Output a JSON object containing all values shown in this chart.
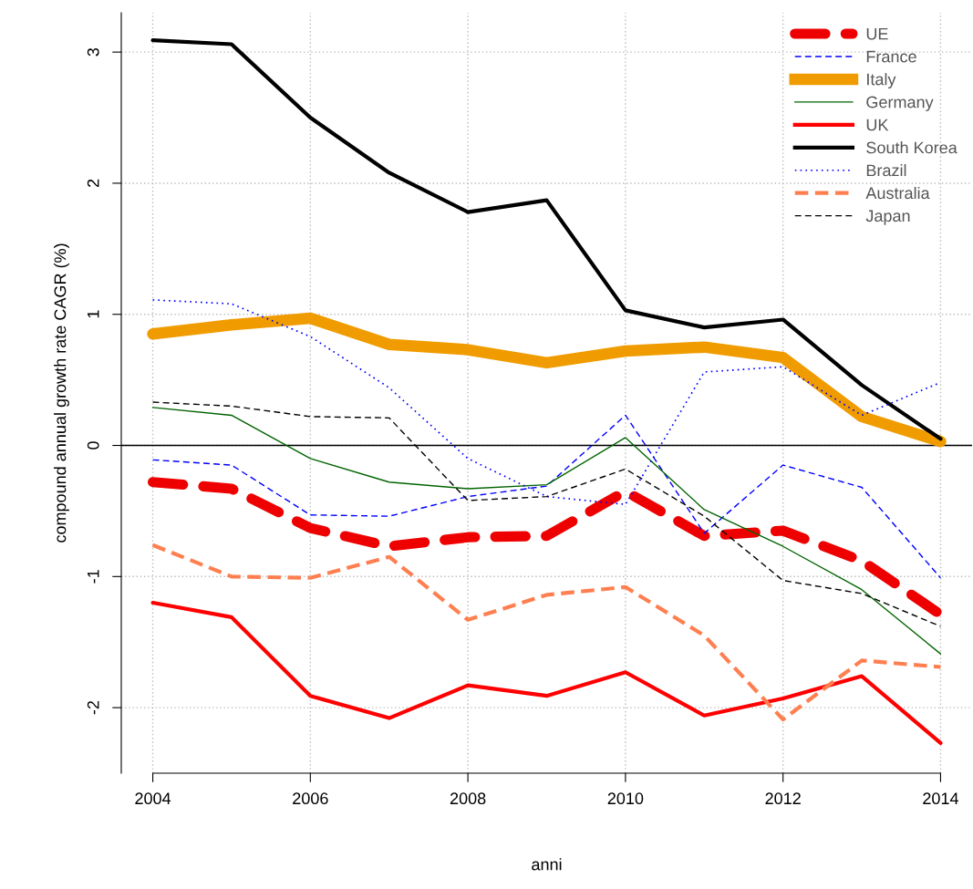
{
  "chart_data": {
    "type": "line",
    "xlabel": "anni",
    "ylabel": "compound annual growth rate CAGR (%)",
    "x": [
      2004,
      2005,
      2006,
      2007,
      2008,
      2009,
      2010,
      2011,
      2012,
      2013,
      2014
    ],
    "xlim": [
      2003.6,
      2014.4
    ],
    "xticks": [
      2004,
      2006,
      2008,
      2010,
      2012,
      2014
    ],
    "ylim": [
      -2.5,
      3.3
    ],
    "yticks": [
      -2,
      -1,
      0,
      1,
      2,
      3
    ],
    "grid": true,
    "legend": "top right",
    "ref_lines": [
      {
        "axis": "y",
        "value": 0,
        "color": "#000000",
        "line_style": "solid"
      }
    ],
    "series": [
      {
        "name": "UE",
        "color": "#ee0000",
        "line_style": "dashed",
        "values": [
          -0.28,
          -0.33,
          -0.63,
          -0.77,
          -0.7,
          -0.69,
          -0.35,
          -0.69,
          -0.65,
          -0.88,
          -1.29
        ]
      },
      {
        "name": "France",
        "color": "#0000ff",
        "line_style": "dashed",
        "values": [
          -0.11,
          -0.15,
          -0.53,
          -0.54,
          -0.39,
          -0.31,
          0.23,
          -0.67,
          -0.15,
          -0.32,
          -1.01
        ]
      },
      {
        "name": "Italy",
        "color": "#f09c00",
        "line_style": "solid",
        "values": [
          0.85,
          0.92,
          0.97,
          0.77,
          0.73,
          0.63,
          0.72,
          0.75,
          0.67,
          0.22,
          0.03
        ]
      },
      {
        "name": "Germany",
        "color": "#006400",
        "line_style": "solid",
        "values": [
          0.29,
          0.23,
          -0.1,
          -0.28,
          -0.33,
          -0.3,
          0.06,
          -0.49,
          -0.77,
          -1.1,
          -1.59
        ]
      },
      {
        "name": "UK",
        "color": "#ff0000",
        "line_style": "solid",
        "values": [
          -1.2,
          -1.31,
          -1.91,
          -2.08,
          -1.83,
          -1.91,
          -1.73,
          -2.06,
          -1.93,
          -1.76,
          -2.27
        ]
      },
      {
        "name": "South Korea",
        "color": "#000000",
        "line_style": "solid",
        "values": [
          3.09,
          3.06,
          2.5,
          2.08,
          1.78,
          1.87,
          1.03,
          0.9,
          0.96,
          0.46,
          0.05
        ]
      },
      {
        "name": "Brazil",
        "color": "#0000ff",
        "line_style": "dotted",
        "values": [
          1.11,
          1.08,
          0.83,
          0.44,
          -0.1,
          -0.39,
          -0.45,
          0.56,
          0.6,
          0.23,
          0.48
        ]
      },
      {
        "name": "Australia",
        "color": "#ff7f50",
        "line_style": "dashed",
        "values": [
          -0.76,
          -1.0,
          -1.01,
          -0.85,
          -1.33,
          -1.14,
          -1.08,
          -1.45,
          -2.09,
          -1.64,
          -1.69
        ]
      },
      {
        "name": "Japan",
        "color": "#000000",
        "line_style": "dashed",
        "values": [
          0.33,
          0.3,
          0.22,
          0.21,
          -0.42,
          -0.39,
          -0.18,
          -0.54,
          -1.03,
          -1.13,
          -1.38
        ]
      }
    ]
  }
}
